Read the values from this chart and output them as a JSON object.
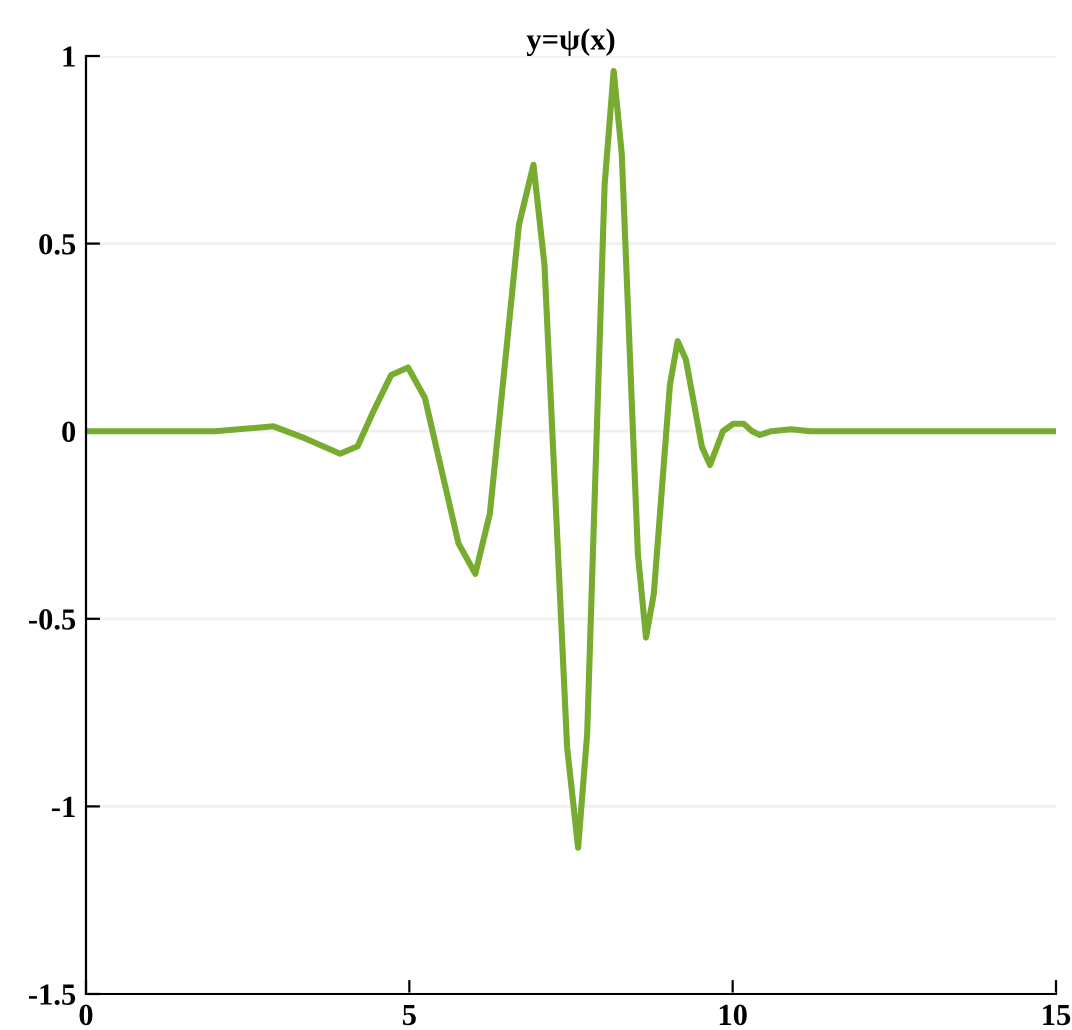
{
  "chart_data": {
    "type": "line",
    "title": "y=ψ(x)",
    "x": [
      0,
      1,
      2,
      2.9,
      3.4,
      3.93,
      4.2,
      4.45,
      4.72,
      4.98,
      5.24,
      5.5,
      5.76,
      6.02,
      6.245,
      6.47,
      6.695,
      6.92,
      7.09,
      7.265,
      7.44,
      7.61,
      7.75,
      7.885,
      8.02,
      8.16,
      8.285,
      8.41,
      8.535,
      8.66,
      8.78,
      8.905,
      9.03,
      9.15,
      9.275,
      9.4,
      9.525,
      9.65,
      9.85,
      10.01,
      10.17,
      10.3,
      10.42,
      10.6,
      10.9,
      11.2,
      12,
      13,
      14,
      15
    ],
    "series": [
      {
        "color": "#77ac30",
        "values": [
          0,
          0,
          0,
          0.013,
          -0.02,
          -0.06,
          -0.04,
          0.055,
          0.15,
          0.17,
          0.089,
          -0.105,
          -0.299,
          -0.38,
          -0.22,
          0.165,
          0.55,
          0.71,
          0.443,
          -0.2,
          -0.843,
          -1.11,
          -0.807,
          -0.075,
          0.657,
          0.96,
          0.739,
          0.205,
          -0.329,
          -0.55,
          -0.434,
          -0.155,
          0.124,
          0.24,
          0.192,
          0.075,
          -0.042,
          -0.09,
          0,
          0.02,
          0.02,
          0,
          -0.01,
          0,
          0.005,
          0,
          0,
          0,
          0,
          0
        ]
      }
    ],
    "xlim": [
      0,
      15
    ],
    "ylim": [
      -1.5,
      1
    ],
    "xticks": [
      0,
      5,
      10,
      15
    ],
    "yticks": [
      -1.5,
      -1,
      -0.5,
      0,
      0.5,
      1
    ],
    "grid": "y",
    "line_style": "solid",
    "marker": "none"
  }
}
